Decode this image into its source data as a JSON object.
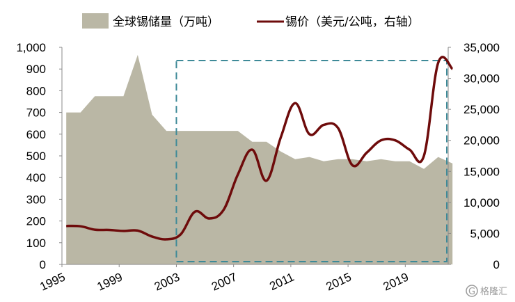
{
  "chart_data": {
    "type": "area+line",
    "legend_placement": "top",
    "grid": false,
    "x_tick_labels": [
      "1995",
      "1999",
      "2003",
      "2007",
      "2011",
      "2015",
      "2019"
    ],
    "y_left_ticks": [
      "0",
      "100",
      "200",
      "300",
      "400",
      "500",
      "600",
      "700",
      "800",
      "900",
      "1,000"
    ],
    "y_right_ticks": [
      "0",
      "5,000",
      "10,000",
      "15,000",
      "20,000",
      "25,000",
      "30,000",
      "35,000"
    ],
    "ylim_left": [
      0,
      1000
    ],
    "ylim_right": [
      0,
      35000
    ],
    "xlim": [
      1995,
      2022
    ],
    "series": [
      {
        "name": "全球锡储量（万吨）",
        "kind": "area",
        "axis": "left",
        "color": "#bab7a5",
        "x": [
          1995.3,
          1996.3,
          1997.3,
          1998.3,
          1999.3,
          2000.3,
          2001.3,
          2002.3,
          2003.3,
          2004.3,
          2005.3,
          2006.3,
          2007.3,
          2008.3,
          2009.3,
          2010.3,
          2011.3,
          2012.3,
          2013.3,
          2014.3,
          2015.3,
          2016.3,
          2017.3,
          2018.3,
          2019.3,
          2020.3,
          2021.3,
          2022.3
        ],
        "values": [
          700,
          700,
          775,
          775,
          775,
          965,
          690,
          615,
          615,
          615,
          615,
          615,
          615,
          565,
          565,
          520,
          485,
          495,
          475,
          485,
          485,
          475,
          485,
          475,
          475,
          440,
          495,
          465
        ]
      },
      {
        "name": "锡价（美元/公吨，右轴）",
        "kind": "line",
        "axis": "right",
        "color": "#6e0b0b",
        "x": [
          1995.3,
          1996.3,
          1997.3,
          1998.3,
          1999.3,
          2000.3,
          2001.3,
          2002.3,
          2003.3,
          2004.3,
          2005.3,
          2006.3,
          2007.3,
          2008.3,
          2009.3,
          2010.3,
          2011.3,
          2012.3,
          2013.3,
          2014.3,
          2015.3,
          2016.3,
          2017.3,
          2018.3,
          2019.3,
          2020.3,
          2021.3,
          2022.3
        ],
        "values": [
          6200,
          6150,
          5600,
          5550,
          5400,
          5450,
          4500,
          4050,
          4850,
          8500,
          7400,
          8800,
          14500,
          18500,
          13500,
          20500,
          26000,
          21000,
          22500,
          22000,
          16000,
          18000,
          20000,
          20000,
          18500,
          17500,
          32500,
          31500
        ]
      }
    ]
  },
  "watermark": {
    "icon_letter": "G",
    "text": "格隆汇"
  }
}
